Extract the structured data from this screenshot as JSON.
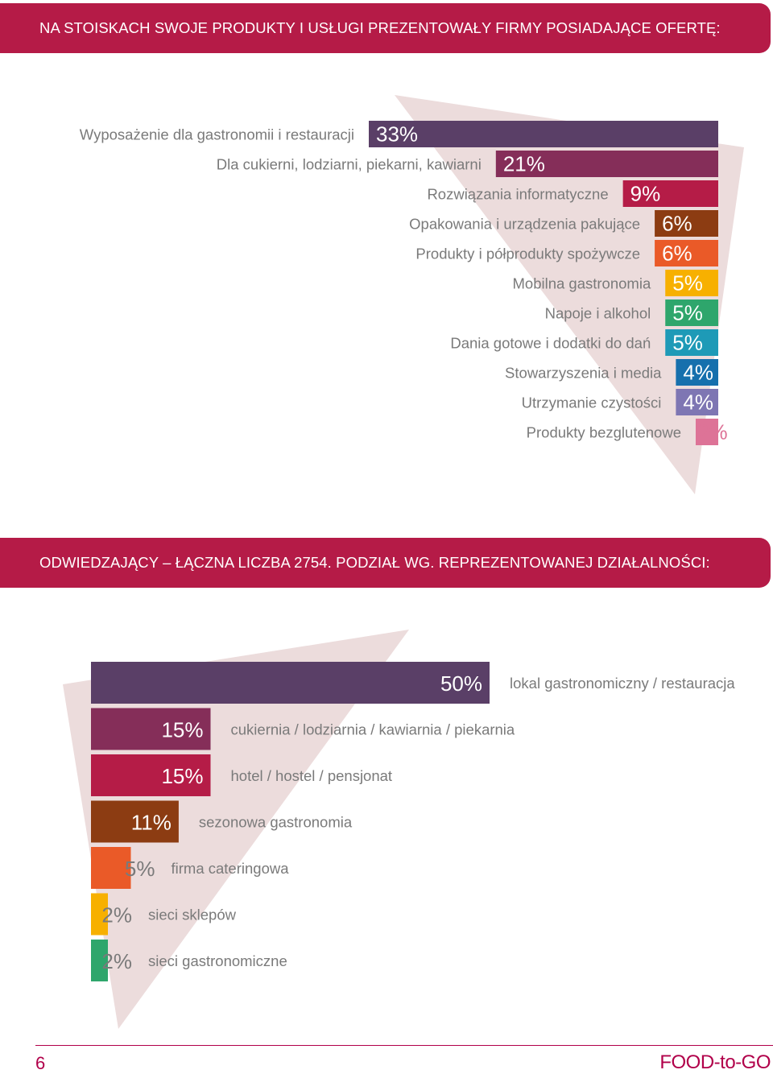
{
  "colors": {
    "banner": "#b51b47",
    "backdrop": "#ecdcdc",
    "footer": "#b1004a"
  },
  "section1": {
    "title": "NA STOISKACH SWOJE PRODUKTY I USŁUGI PREZENTOWAŁY FIRMY POSIADAJĄCE OFERTĘ:"
  },
  "section2": {
    "title": "ODWIEDZAJĄCY – ŁĄCZNA LICZBA 2754. PODZIAŁ WG. REPREZENTOWANEJ DZIAŁALNOŚCI:"
  },
  "footer": {
    "page_number": "6",
    "brand": "FOOD-to-GO"
  },
  "chart_data": [
    {
      "type": "bar",
      "orientation": "horizontal",
      "unit": "%",
      "categories": [
        "Wyposażenie dla gastronomii i restauracji",
        "Dla cukierni, lodziarni, piekarni, kawiarni",
        "Rozwiązania informatyczne",
        "Opakowania i urządzenia pakujące",
        "Produkty i półprodukty spożywcze",
        "Mobilna gastronomia",
        "Napoje i alkohol",
        "Dania gotowe i dodatki do dań",
        "Stowarzyszenia i media",
        "Utrzymanie czystości",
        "Produkty bezglutenowe"
      ],
      "values": [
        33,
        21,
        9,
        6,
        6,
        5,
        5,
        5,
        4,
        4,
        2
      ],
      "value_labels": [
        "33%",
        "21%",
        "9%",
        "6%",
        "6%",
        "5%",
        "5%",
        "5%",
        "4%",
        "4%",
        "2%"
      ],
      "colors": [
        "#5a3f67",
        "#852e59",
        "#b51c47",
        "#8c3c12",
        "#ea5a28",
        "#f7b000",
        "#2ea66c",
        "#1e9ab7",
        "#1670ad",
        "#7e76b3",
        "#dd7397"
      ]
    },
    {
      "type": "bar",
      "orientation": "horizontal",
      "unit": "%",
      "categories": [
        "lokal gastronomiczny / restauracja",
        "cukiernia / lodziarnia / kawiarnia / piekarnia",
        "hotel / hostel / pensjonat",
        "sezonowa gastronomia",
        "firma cateringowa",
        "sieci sklepów",
        "sieci gastronomiczne"
      ],
      "values": [
        50,
        15,
        15,
        11,
        5,
        2,
        2
      ],
      "value_labels": [
        "50%",
        "15%",
        "15%",
        "11%",
        "5%",
        "2%",
        "2%"
      ],
      "colors": [
        "#5a3f67",
        "#852e59",
        "#b51c47",
        "#8c3c12",
        "#ea5a28",
        "#f7b000",
        "#2ea66c"
      ]
    }
  ]
}
